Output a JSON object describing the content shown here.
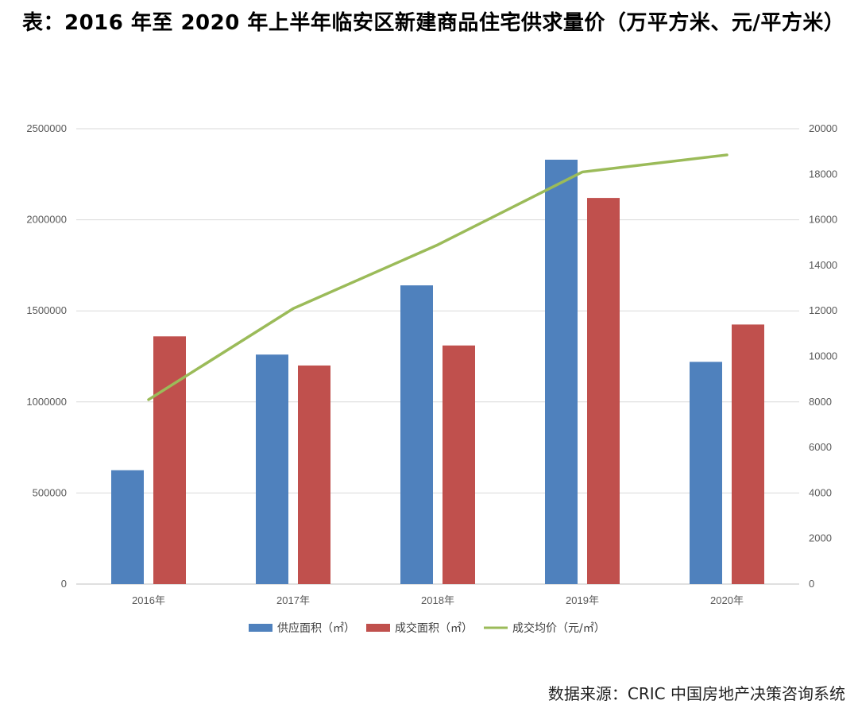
{
  "title": "表：2016 年至 2020 年上半年临安区新建商品住宅供求量价（万平方米、元/平方米）",
  "source": "数据来源：CRIC 中国房地产决策咨询系统",
  "chart_data": {
    "type": "bar",
    "categories": [
      "2016年",
      "2017年",
      "2018年",
      "2019年",
      "2020年"
    ],
    "series": [
      {
        "name": "供应面积（㎡）",
        "type": "bar",
        "axis": "left",
        "color": "#4F81BD",
        "values": [
          625000,
          1260000,
          1640000,
          2330000,
          1220000
        ]
      },
      {
        "name": "成交面积（㎡）",
        "type": "bar",
        "axis": "left",
        "color": "#C0504D",
        "values": [
          1360000,
          1200000,
          1310000,
          2120000,
          1425000
        ]
      },
      {
        "name": "成交均价（元/㎡）",
        "type": "line",
        "axis": "right",
        "color": "#9BBB59",
        "values": [
          8100,
          12100,
          14900,
          18100,
          18850
        ]
      }
    ],
    "y_left": {
      "min": 0,
      "max": 2500000,
      "ticks": [
        "0",
        "500000",
        "1000000",
        "1500000",
        "2000000",
        "2500000"
      ]
    },
    "y_right": {
      "min": 0,
      "max": 20000,
      "ticks": [
        "0",
        "2000",
        "4000",
        "6000",
        "8000",
        "10000",
        "12000",
        "14000",
        "16000",
        "18000",
        "20000"
      ]
    },
    "grid": true,
    "legend_position": "bottom"
  }
}
